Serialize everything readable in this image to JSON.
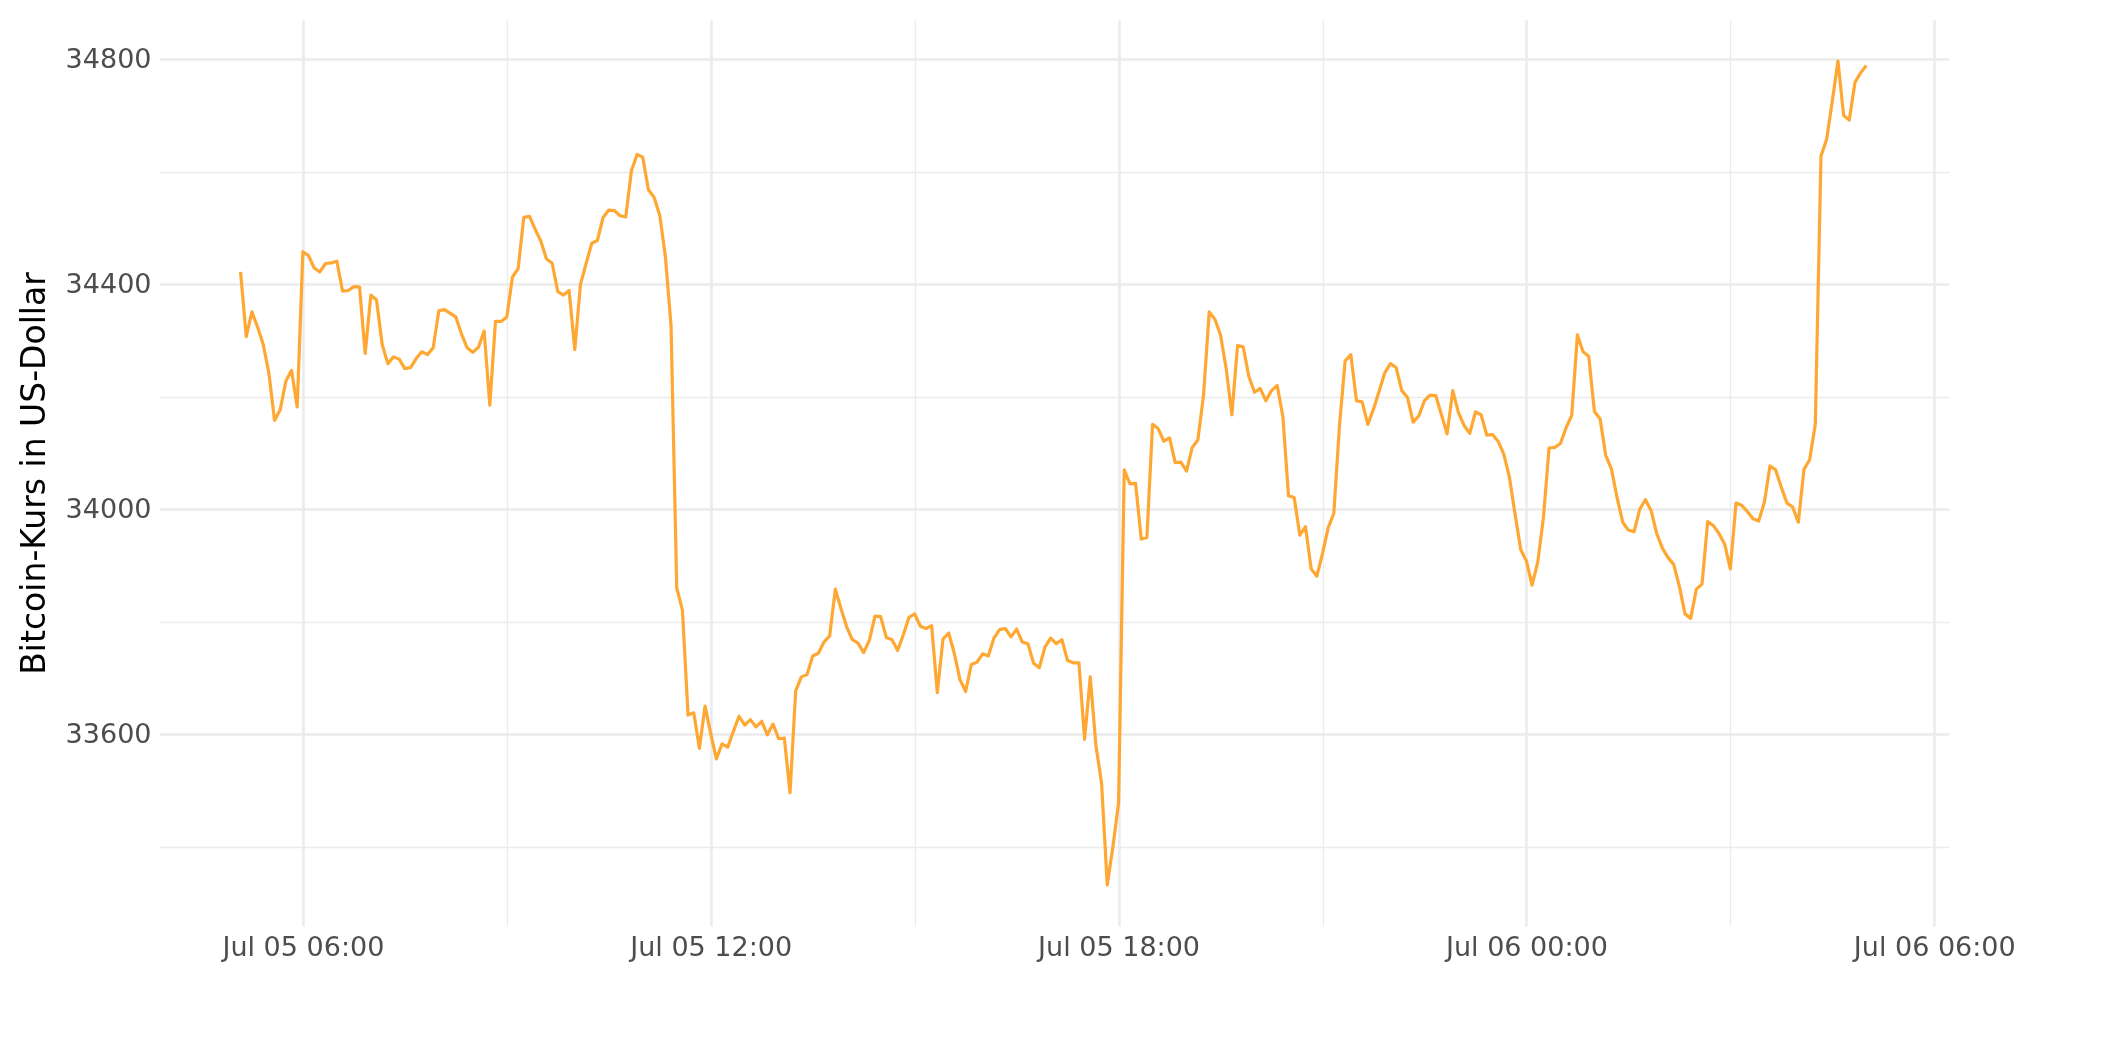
{
  "chart_data": {
    "type": "line",
    "ylabel": "Bitcoin-Kurs in US-Dollar",
    "x": [
      "--07-05T05:05",
      "--07-05T05:10",
      "--07-05T05:15",
      "--07-05T05:20",
      "--07-05T05:25",
      "--07-05T05:30",
      "--07-05T05:35",
      "--07-05T05:40",
      "--07-05T05:45",
      "--07-05T05:50",
      "--07-05T05:55",
      "--07-05T06:00",
      "--07-05T06:05",
      "--07-05T06:10",
      "--07-05T06:15",
      "--07-05T06:20",
      "--07-05T06:25",
      "--07-05T06:30",
      "--07-05T06:35",
      "--07-05T06:40",
      "--07-05T06:45",
      "--07-05T06:50",
      "--07-05T06:55",
      "--07-05T07:00",
      "--07-05T07:05",
      "--07-05T07:10",
      "--07-05T07:15",
      "--07-05T07:20",
      "--07-05T07:25",
      "--07-05T07:30",
      "--07-05T07:35",
      "--07-05T07:40",
      "--07-05T07:45",
      "--07-05T07:50",
      "--07-05T07:55",
      "--07-05T08:00",
      "--07-05T08:05",
      "--07-05T08:15",
      "--07-05T08:20",
      "--07-05T08:25",
      "--07-05T08:30",
      "--07-05T08:35",
      "--07-05T08:40",
      "--07-05T08:45",
      "--07-05T08:50",
      "--07-05T08:55",
      "--07-05T09:00",
      "--07-05T09:05",
      "--07-05T09:10",
      "--07-05T09:15",
      "--07-05T09:20",
      "--07-05T09:25",
      "--07-05T09:30",
      "--07-05T09:35",
      "--07-05T09:40",
      "--07-05T09:45",
      "--07-05T09:50",
      "--07-05T09:55",
      "--07-05T10:00",
      "--07-05T10:05",
      "--07-05T10:10",
      "--07-05T10:15",
      "--07-05T10:20",
      "--07-05T10:25",
      "--07-05T10:30",
      "--07-05T10:35",
      "--07-05T10:40",
      "--07-05T10:45",
      "--07-05T10:50",
      "--07-05T10:55",
      "--07-05T11:00",
      "--07-05T11:05",
      "--07-05T11:10",
      "--07-05T11:15",
      "--07-05T11:20",
      "--07-05T11:25",
      "--07-05T11:30",
      "--07-05T11:35",
      "--07-05T11:40",
      "--07-05T11:45",
      "--07-05T11:50",
      "--07-05T11:55",
      "--07-05T12:00",
      "--07-05T12:05",
      "--07-05T12:10",
      "--07-05T12:15",
      "--07-05T12:20",
      "--07-05T12:25",
      "--07-05T12:30",
      "--07-05T12:35",
      "--07-05T12:40",
      "--07-05T12:45",
      "--07-05T12:50",
      "--07-05T12:55",
      "--07-05T13:00",
      "--07-05T13:05",
      "--07-05T13:10",
      "--07-05T13:15",
      "--07-05T13:20",
      "--07-05T13:25",
      "--07-05T13:30",
      "--07-05T13:35",
      "--07-05T13:40",
      "--07-05T13:45",
      "--07-05T13:50",
      "--07-05T13:55",
      "--07-05T14:00",
      "--07-05T14:05",
      "--07-05T14:10",
      "--07-05T14:15",
      "--07-05T14:20",
      "--07-05T14:25",
      "--07-05T14:30",
      "--07-05T14:35",
      "--07-05T14:40",
      "--07-05T14:45",
      "--07-05T14:50",
      "--07-05T14:55",
      "--07-05T15:00",
      "--07-05T15:05",
      "--07-05T15:10",
      "--07-05T15:15",
      "--07-05T15:20",
      "--07-05T15:25",
      "--07-05T15:30",
      "--07-05T15:35",
      "--07-05T15:40",
      "--07-05T15:45",
      "--07-05T15:50",
      "--07-05T15:55",
      "--07-05T16:00",
      "--07-05T16:05",
      "--07-05T16:10",
      "--07-05T16:15",
      "--07-05T16:20",
      "--07-05T16:25",
      "--07-05T16:30",
      "--07-05T16:35",
      "--07-05T16:40",
      "--07-05T16:45",
      "--07-05T16:50",
      "--07-05T16:55",
      "--07-05T17:00",
      "--07-05T17:05",
      "--07-05T17:10",
      "--07-05T17:15",
      "--07-05T17:20",
      "--07-05T17:25",
      "--07-05T17:30",
      "--07-05T17:35",
      "--07-05T17:40",
      "--07-05T17:45",
      "--07-05T17:50",
      "--07-05T17:55",
      "--07-05T18:00",
      "--07-05T18:05",
      "--07-05T18:10",
      "--07-05T18:15",
      "--07-05T18:20",
      "--07-05T18:25",
      "--07-05T18:30",
      "--07-05T18:35",
      "--07-05T18:40",
      "--07-05T18:45",
      "--07-05T18:50",
      "--07-05T18:55",
      "--07-05T19:00",
      "--07-05T19:05",
      "--07-05T19:10",
      "--07-05T19:15",
      "--07-05T19:20",
      "--07-05T19:25",
      "--07-05T19:30",
      "--07-05T19:35",
      "--07-05T19:40",
      "--07-05T19:45",
      "--07-05T19:50",
      "--07-05T19:55",
      "--07-05T20:00",
      "--07-05T20:05",
      "--07-05T20:10",
      "--07-05T20:15",
      "--07-05T20:20",
      "--07-05T20:25",
      "--07-05T20:30",
      "--07-05T20:35",
      "--07-05T20:40",
      "--07-05T20:45",
      "--07-05T20:50",
      "--07-05T20:55",
      "--07-05T21:00",
      "--07-05T21:05",
      "--07-05T21:10",
      "--07-05T21:15",
      "--07-05T21:20",
      "--07-05T21:25",
      "--07-05T21:30",
      "--07-05T21:35",
      "--07-05T21:40",
      "--07-05T21:45",
      "--07-05T21:50",
      "--07-05T21:55",
      "--07-05T22:00",
      "--07-05T22:05",
      "--07-05T22:10",
      "--07-05T22:15",
      "--07-05T22:20",
      "--07-05T22:25",
      "--07-05T22:30",
      "--07-05T22:35",
      "--07-05T22:40",
      "--07-05T22:45",
      "--07-05T22:50",
      "--07-05T22:55",
      "--07-05T23:00",
      "--07-05T23:05",
      "--07-05T23:10",
      "--07-05T23:15",
      "--07-05T23:20",
      "--07-05T23:25",
      "--07-05T23:30",
      "--07-05T23:35",
      "--07-05T23:40",
      "--07-05T23:45",
      "--07-05T23:50",
      "--07-05T23:55",
      "--07-06T00:00",
      "--07-06T00:05",
      "--07-06T00:10",
      "--07-06T00:15",
      "--07-06T00:20",
      "--07-06T00:25",
      "--07-06T00:30",
      "--07-06T00:35",
      "--07-06T00:40",
      "--07-06T00:45",
      "--07-06T00:50",
      "--07-06T00:55",
      "--07-06T01:00",
      "--07-06T01:05",
      "--07-06T01:10",
      "--07-06T01:15",
      "--07-06T01:20",
      "--07-06T01:25",
      "--07-06T01:30",
      "--07-06T01:35",
      "--07-06T01:40",
      "--07-06T01:45",
      "--07-06T01:50",
      "--07-06T01:55",
      "--07-06T02:00",
      "--07-06T02:05",
      "--07-06T02:10",
      "--07-06T02:15",
      "--07-06T02:20",
      "--07-06T02:25",
      "--07-06T02:30",
      "--07-06T02:35",
      "--07-06T02:40",
      "--07-06T02:45",
      "--07-06T02:50",
      "--07-06T02:55",
      "--07-06T03:00",
      "--07-06T03:05",
      "--07-06T03:10",
      "--07-06T03:15",
      "--07-06T03:20",
      "--07-06T03:25",
      "--07-06T03:30",
      "--07-06T03:35",
      "--07-06T03:40",
      "--07-06T03:45",
      "--07-06T03:50",
      "--07-06T03:55",
      "--07-06T04:00",
      "--07-06T04:05",
      "--07-06T04:10",
      "--07-06T04:15",
      "--07-06T04:20",
      "--07-06T04:25",
      "--07-06T04:30",
      "--07-06T04:35",
      "--07-06T04:40",
      "--07-06T04:45",
      "--07-06T04:50",
      "--07-06T04:55",
      "--07-06T05:00"
    ],
    "series": [
      {
        "color": "#ffa733",
        "values": [
          34422,
          34307,
          34351,
          34324,
          34293,
          34242,
          34158,
          34177,
          34228,
          34247,
          34182,
          34458,
          34451,
          34429,
          34422,
          34437,
          34438,
          34441,
          34388,
          34389,
          34396,
          34395,
          34277,
          34381,
          34372,
          34293,
          34259,
          34271,
          34267,
          34250,
          34252,
          34268,
          34280,
          34275,
          34287,
          34353,
          34355,
          34342,
          34312,
          34287,
          34279,
          34288,
          34317,
          34185,
          34334,
          34334,
          34342,
          34413,
          34428,
          34519,
          34521,
          34498,
          34477,
          34445,
          34438,
          34387,
          34381,
          34389,
          34284,
          34400,
          34437,
          34473,
          34478,
          34519,
          34532,
          34531,
          34522,
          34520,
          34602,
          34631,
          34626,
          34568,
          34555,
          34523,
          34449,
          34326,
          33860,
          33821,
          33634,
          33638,
          33575,
          33650,
          33601,
          33556,
          33583,
          33577,
          33605,
          33632,
          33616,
          33626,
          33613,
          33623,
          33599,
          33618,
          33592,
          33593,
          33496,
          33677,
          33702,
          33706,
          33739,
          33744,
          33764,
          33775,
          33858,
          33823,
          33791,
          33768,
          33762,
          33745,
          33767,
          33810,
          33809,
          33772,
          33768,
          33749,
          33777,
          33808,
          33814,
          33792,
          33788,
          33793,
          33674,
          33769,
          33780,
          33744,
          33697,
          33676,
          33724,
          33728,
          33743,
          33739,
          33771,
          33786,
          33788,
          33773,
          33787,
          33764,
          33761,
          33726,
          33718,
          33755,
          33771,
          33761,
          33768,
          33731,
          33727,
          33727,
          33591,
          33702,
          33580,
          33513,
          33332,
          33400,
          33478,
          34070,
          34045,
          34046,
          33947,
          33950,
          34151,
          34143,
          34121,
          34127,
          34083,
          34084,
          34068,
          34110,
          34123,
          34203,
          34351,
          34338,
          34310,
          34250,
          34168,
          34291,
          34289,
          34236,
          34208,
          34215,
          34193,
          34211,
          34220,
          34165,
          34024,
          34021,
          33954,
          33969,
          33894,
          33881,
          33921,
          33967,
          33993,
          34149,
          34264,
          34275,
          34193,
          34191,
          34151,
          34178,
          34210,
          34243,
          34259,
          34252,
          34211,
          34199,
          34155,
          34166,
          34193,
          34203,
          34202,
          34168,
          34134,
          34211,
          34172,
          34149,
          34135,
          34173,
          34168,
          34132,
          34133,
          34121,
          34098,
          34057,
          33991,
          33928,
          33908,
          33865,
          33906,
          33985,
          34109,
          34110,
          34117,
          34145,
          34167,
          34310,
          34280,
          34272,
          34174,
          34161,
          34096,
          34072,
          34021,
          33977,
          33963,
          33960,
          34000,
          34017,
          33998,
          33957,
          33931,
          33914,
          33902,
          33863,
          33814,
          33806,
          33858,
          33867,
          33978,
          33971,
          33957,
          33938,
          33894,
          34011,
          34007,
          33996,
          33983,
          33979,
          34012,
          34077,
          34070,
          34039,
          34011,
          34004,
          33977,
          34071,
          34088,
          34151,
          34628,
          34658,
          34726,
          34797,
          34700,
          34692,
          34759,
          34776,
          34789
        ]
      }
    ],
    "xlim": [
      "--07-05T03:53",
      "--07-06T06:13"
    ],
    "xticks": [
      {
        "value": "--07-05T06:00",
        "label": "Jul 05 06:00"
      },
      {
        "value": "--07-05T09:00",
        "label": null
      },
      {
        "value": "--07-05T12:00",
        "label": "Jul 05 12:00"
      },
      {
        "value": "--07-05T15:00",
        "label": null
      },
      {
        "value": "--07-05T18:00",
        "label": "Jul 05 18:00"
      },
      {
        "value": "--07-05T21:00",
        "label": null
      },
      {
        "value": "--07-06T00:00",
        "label": "Jul 06 00:00"
      },
      {
        "value": "--07-06T03:00",
        "label": null
      },
      {
        "value": "--07-06T06:00",
        "label": "Jul 06 06:00"
      }
    ],
    "ylim": [
      33259,
      34870
    ],
    "yticks": [
      {
        "value": 33400,
        "label": null
      },
      33600,
      {
        "value": 33800,
        "label": null
      },
      34000,
      {
        "value": 34200,
        "label": null
      },
      34400,
      {
        "value": 34600,
        "label": null
      },
      34800
    ],
    "grid": true
  }
}
